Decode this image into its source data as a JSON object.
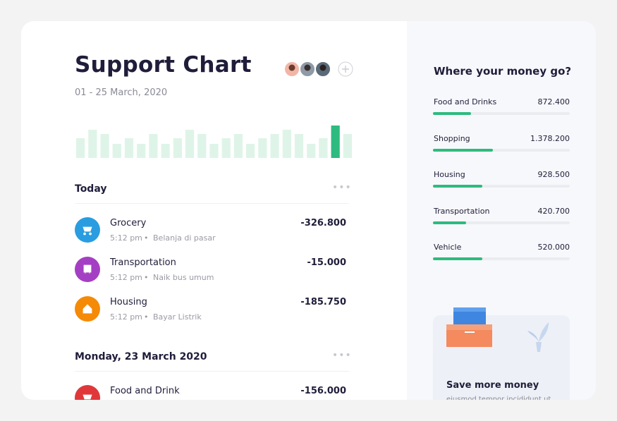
{
  "header": {
    "title": "Support Chart",
    "date": "01 - 25 March, 2020"
  },
  "activity": {
    "values": [
      28,
      40,
      34,
      20,
      28,
      20,
      34,
      20,
      28,
      40,
      34,
      20,
      28,
      34,
      20,
      28,
      34,
      40,
      34,
      20,
      28,
      46,
      34
    ],
    "highlight": 21
  },
  "groups": [
    {
      "title": "Today",
      "items": [
        {
          "name": "Grocery",
          "time": "5:12 pm",
          "note": "Belanja di pasar",
          "amount": "-326.800",
          "color": "#2a9de0"
        },
        {
          "name": "Transportation",
          "time": "5:12 pm",
          "note": "Naik bus umum",
          "amount": "-15.000",
          "color": "#a43fc4"
        },
        {
          "name": "Housing",
          "time": "5:12 pm",
          "note": "Bayar Listrik",
          "amount": "-185.750",
          "color": "#f58a07"
        }
      ]
    },
    {
      "title": "Monday, 23 March 2020",
      "items": [
        {
          "name": "Food and Drink",
          "amount": "-156.000",
          "color": "#e0383a"
        }
      ]
    }
  ],
  "spending": {
    "title": "Where your money go?",
    "items": [
      {
        "label": "Food and Drinks",
        "amount": "872.400",
        "progress": 28
      },
      {
        "label": "Shopping",
        "amount": "1.378.200",
        "progress": 44
      },
      {
        "label": "Housing",
        "amount": "928.500",
        "progress": 36
      },
      {
        "label": "Transportation",
        "amount": "420.700",
        "progress": 24
      },
      {
        "label": "Vehicle",
        "amount": "520.000",
        "progress": 36
      }
    ]
  },
  "promo": {
    "title": "Save more money",
    "text": "eiusmod tempor incididunt ut labore et dolore magna aliqua."
  }
}
